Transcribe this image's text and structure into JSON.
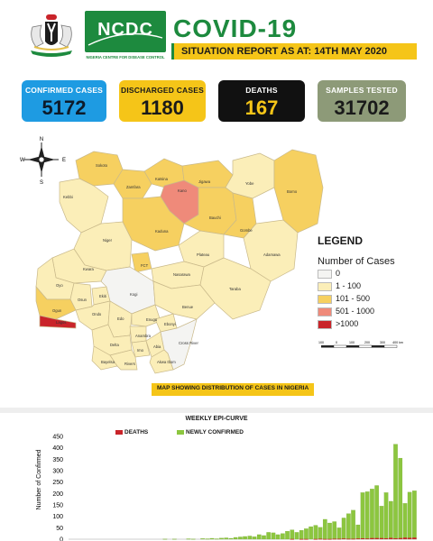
{
  "header": {
    "logo_text": "NCDC",
    "logo_subtitle": "NIGERIA CENTRE FOR DISEASE CONTROL",
    "title": "COVID-19",
    "subtitle": "SITUATION REPORT AS AT: 14TH MAY 2020"
  },
  "stats": [
    {
      "label": "CONFIRMED CASES",
      "value": "5172"
    },
    {
      "label": "DISCHARGED CASES",
      "value": "1180"
    },
    {
      "label": "DEATHS",
      "value": "167"
    },
    {
      "label": "SAMPLES TESTED",
      "value": "31702"
    }
  ],
  "map": {
    "caption": "MAP SHOWING DISTRIBUTION OF CASES IN NIGERIA",
    "compass": {
      "north": "N",
      "south": "S",
      "east": "E",
      "west": "W"
    },
    "scale_labels": [
      "100",
      "0",
      "100",
      "200",
      "300",
      "400 km"
    ],
    "colors": {
      "zero": "#f4f4f2",
      "low": "#fbeeb8",
      "mid": "#f6d060",
      "high": "#ef8a7a",
      "very_high": "#c9242a"
    },
    "states": [
      {
        "name": "Sokoto",
        "band": "mid"
      },
      {
        "name": "Zamfara",
        "band": "mid"
      },
      {
        "name": "Katsina",
        "band": "mid"
      },
      {
        "name": "Kano",
        "band": "high"
      },
      {
        "name": "Jigawa",
        "band": "mid"
      },
      {
        "name": "Yobe",
        "band": "low"
      },
      {
        "name": "Borno",
        "band": "mid"
      },
      {
        "name": "Kebbi",
        "band": "low"
      },
      {
        "name": "Kaduna",
        "band": "mid"
      },
      {
        "name": "Bauchi",
        "band": "mid"
      },
      {
        "name": "Gombe",
        "band": "mid"
      },
      {
        "name": "Niger",
        "band": "low"
      },
      {
        "name": "FCT",
        "band": "mid"
      },
      {
        "name": "Plateau",
        "band": "low"
      },
      {
        "name": "Adamawa",
        "band": "low"
      },
      {
        "name": "Kwara",
        "band": "low"
      },
      {
        "name": "Nasarawa",
        "band": "low"
      },
      {
        "name": "Taraba",
        "band": "low"
      },
      {
        "name": "Oyo",
        "band": "low"
      },
      {
        "name": "Osun",
        "band": "low"
      },
      {
        "name": "Ekiti",
        "band": "low"
      },
      {
        "name": "Kogi",
        "band": "zero"
      },
      {
        "name": "Benue",
        "band": "low"
      },
      {
        "name": "Ogun",
        "band": "mid"
      },
      {
        "name": "Ondo",
        "band": "low"
      },
      {
        "name": "Lagos",
        "band": "very_high"
      },
      {
        "name": "Edo",
        "band": "low"
      },
      {
        "name": "Enugu",
        "band": "low"
      },
      {
        "name": "Anambra",
        "band": "low"
      },
      {
        "name": "Ebonyi",
        "band": "low"
      },
      {
        "name": "Delta",
        "band": "low"
      },
      {
        "name": "Imo",
        "band": "low"
      },
      {
        "name": "Abia",
        "band": "low"
      },
      {
        "name": "Cross River",
        "band": "zero"
      },
      {
        "name": "Bayelsa",
        "band": "low"
      },
      {
        "name": "Rivers",
        "band": "low"
      },
      {
        "name": "Akwa Ibom",
        "band": "low"
      }
    ]
  },
  "legend": {
    "title": "LEGEND",
    "subtitle": "Number of Cases",
    "items": [
      {
        "label": "0",
        "color": "#f4f4f2"
      },
      {
        "label": "1 - 100",
        "color": "#fbeeb8"
      },
      {
        "label": "101 - 500",
        "color": "#f6d060"
      },
      {
        "label": "501 - 1000",
        "color": "#ef8a7a"
      },
      {
        "label": ">1000",
        "color": "#c9242a"
      }
    ]
  },
  "chart_data": {
    "type": "bar",
    "title": "WEEKLY EPI-CURVE",
    "ylabel": "Number of Confirmed",
    "ylim": [
      0,
      450
    ],
    "yticks": [
      0,
      50,
      100,
      150,
      200,
      250,
      300,
      350,
      400,
      450
    ],
    "series": [
      {
        "name": "DEATHS",
        "color": "#c9242a",
        "values": [
          0,
          0,
          0,
          0,
          0,
          0,
          0,
          0,
          0,
          0,
          0,
          0,
          0,
          0,
          0,
          0,
          0,
          0,
          0,
          0,
          0,
          0,
          0,
          0,
          0,
          0,
          0,
          0,
          0,
          0,
          0,
          0,
          0,
          0,
          0,
          0,
          0,
          0,
          0,
          0,
          0,
          0,
          0,
          0,
          0,
          0,
          0,
          1,
          0,
          1,
          1,
          0,
          1,
          2,
          1,
          1,
          2,
          2,
          3,
          2,
          2,
          3,
          4,
          3,
          5,
          5,
          5,
          4,
          6,
          4,
          5,
          7,
          6,
          7
        ]
      },
      {
        "name": "NEWLY CONFIRMED",
        "color": "#8cc63f",
        "values": [
          0,
          0,
          0,
          0,
          0,
          0,
          0,
          0,
          0,
          0,
          0,
          0,
          0,
          0,
          0,
          0,
          0,
          0,
          0,
          0,
          1,
          0,
          1,
          0,
          0,
          2,
          1,
          0,
          3,
          2,
          4,
          2,
          5,
          6,
          4,
          8,
          10,
          12,
          14,
          11,
          20,
          16,
          30,
          28,
          20,
          25,
          35,
          40,
          30,
          38,
          45,
          55,
          60,
          50,
          86,
          70,
          75,
          48,
          90,
          110,
          125,
          60,
          200,
          205,
          215,
          230,
          140,
          200,
          160,
          412,
          350,
          150,
          200,
          205
        ]
      }
    ]
  }
}
